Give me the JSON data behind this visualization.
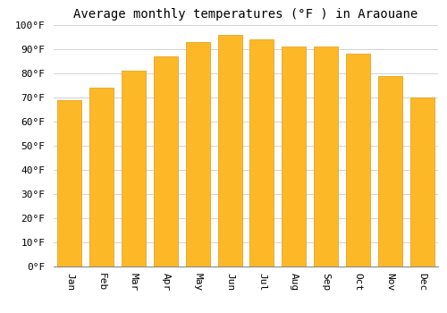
{
  "title": "Average monthly temperatures (°F ) in Araouane",
  "months": [
    "Jan",
    "Feb",
    "Mar",
    "Apr",
    "May",
    "Jun",
    "Jul",
    "Aug",
    "Sep",
    "Oct",
    "Nov",
    "Dec"
  ],
  "values": [
    69,
    74,
    81,
    87,
    93,
    96,
    94,
    91,
    91,
    88,
    79,
    70
  ],
  "bar_color": "#FDB827",
  "bar_edge_color": "#E8960A",
  "ylim": [
    0,
    100
  ],
  "yticks": [
    0,
    10,
    20,
    30,
    40,
    50,
    60,
    70,
    80,
    90,
    100
  ],
  "ytick_labels": [
    "0°F",
    "10°F",
    "20°F",
    "30°F",
    "40°F",
    "50°F",
    "60°F",
    "70°F",
    "80°F",
    "90°F",
    "100°F"
  ],
  "background_color": "#ffffff",
  "grid_color": "#cccccc",
  "title_fontsize": 10,
  "tick_fontsize": 8,
  "font_family": "monospace",
  "bar_width": 0.75,
  "xtick_rotation": 270
}
